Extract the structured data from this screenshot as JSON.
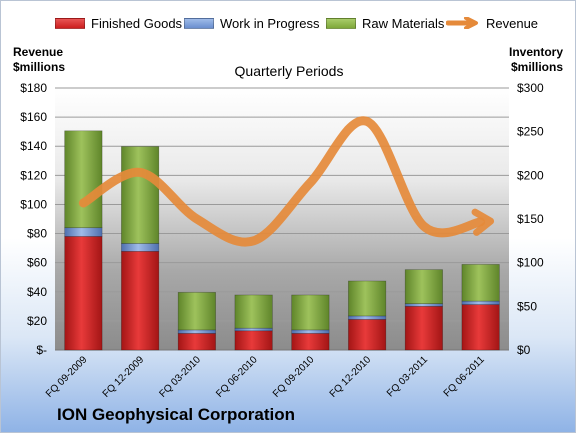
{
  "chart_data": {
    "type": "bar",
    "subtype": "stacked bar with line overlay on secondary axis",
    "title": "Quarterly Periods",
    "footer_title": "ION Geophysical Corporation",
    "left_axis_title": "Revenue $millions",
    "right_axis_title": "Inventory $millions",
    "left_axis_title_lines": [
      "Revenue",
      "$millions"
    ],
    "right_axis_title_lines": [
      "Inventory",
      "$millions"
    ],
    "categories": [
      "FQ 09-2009",
      "FQ 12-2009",
      "FQ 03-2010",
      "FQ 06-2010",
      "FQ 09-2010",
      "FQ 12-2010",
      "FQ 03-2011",
      "FQ 06-2011"
    ],
    "left_ylim": [
      0,
      180
    ],
    "left_ticks": [
      0,
      20,
      40,
      60,
      80,
      100,
      120,
      140,
      160,
      180
    ],
    "left_tick_labels": [
      "$-",
      "$20",
      "$40",
      "$60",
      "$80",
      "$100",
      "$120",
      "$140",
      "$160",
      "$180"
    ],
    "right_ylim": [
      0,
      300
    ],
    "right_ticks": [
      0,
      50,
      100,
      150,
      200,
      250,
      300
    ],
    "right_tick_labels": [
      "$0",
      "$50",
      "$100",
      "$150",
      "$200",
      "$250",
      "$300"
    ],
    "grid": true,
    "legend_position": "top",
    "series": [
      {
        "name": "Finished Goods",
        "axis": "right",
        "kind": "bar",
        "color": "#cc1f1f",
        "values": [
          130,
          113,
          19,
          22,
          19,
          35,
          50,
          52
        ]
      },
      {
        "name": "Work in Progress",
        "axis": "right",
        "kind": "bar",
        "color": "#6a8fcf",
        "values": [
          10,
          9,
          4,
          3,
          4,
          4,
          3,
          4
        ]
      },
      {
        "name": "Raw Materials",
        "axis": "right",
        "kind": "bar",
        "color": "#7fa83a",
        "values": [
          111,
          111,
          43,
          38,
          40,
          40,
          39,
          42
        ]
      },
      {
        "name": "Revenue",
        "axis": "left",
        "kind": "line",
        "color": "#e58a3a",
        "values": [
          101,
          122,
          90,
          75,
          115,
          157,
          85,
          88
        ]
      }
    ]
  }
}
